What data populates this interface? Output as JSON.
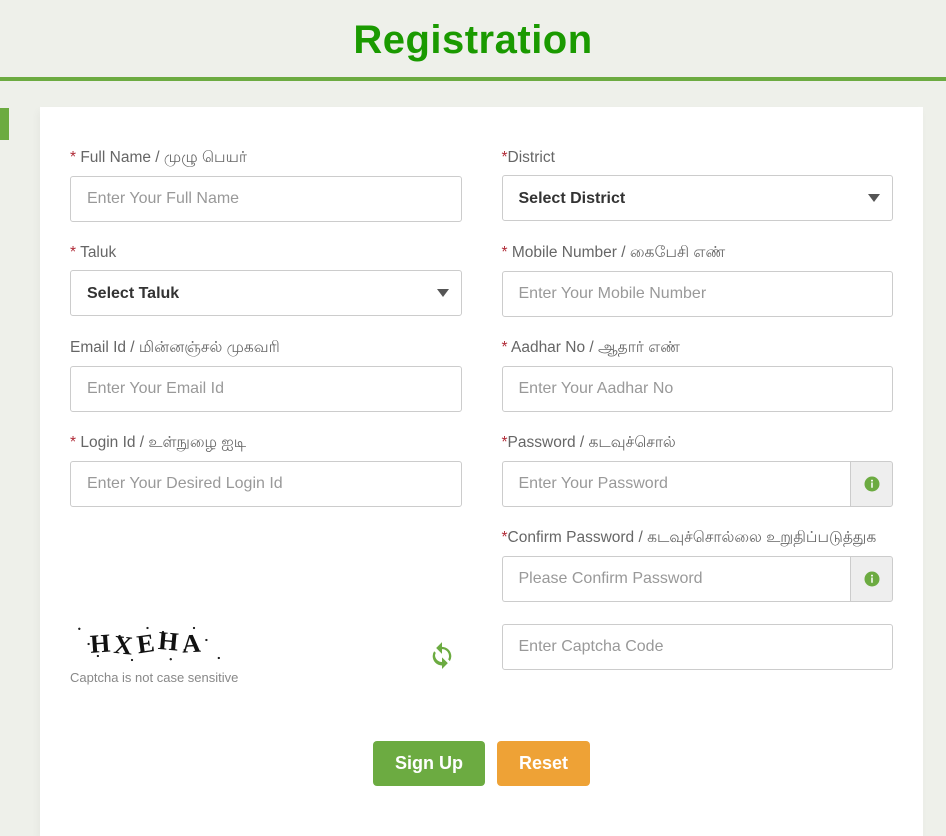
{
  "header": {
    "title": "Registration"
  },
  "colors": {
    "accent": "#6cab41",
    "title": "#1a9a00",
    "required": "#b02a37",
    "bg": "#eef0ea",
    "btn_primary": "#6cab41",
    "btn_warning": "#eea236"
  },
  "fields": {
    "fullname": {
      "label": "Full Name / முழு பெயர்",
      "placeholder": "Enter Your Full Name",
      "required": true
    },
    "district": {
      "label": "District",
      "placeholder": "Select District",
      "required": true
    },
    "taluk": {
      "label": "Taluk",
      "placeholder": "Select Taluk",
      "required": true
    },
    "mobile": {
      "label": "Mobile Number / கைபேசி எண்",
      "placeholder": "Enter Your Mobile Number",
      "required": true
    },
    "email": {
      "label": "Email Id / மின்னஞ்சல் முகவரி",
      "placeholder": "Enter Your Email Id",
      "required": false
    },
    "aadhar": {
      "label": "Aadhar No / ஆதார் எண்",
      "placeholder": "Enter Your Aadhar No",
      "required": true
    },
    "login": {
      "label": "Login Id / உள்நுழை ஐடி",
      "placeholder": "Enter Your Desired Login Id",
      "required": true
    },
    "password": {
      "label": "Password / கடவுச்சொல்",
      "placeholder": "Enter Your Password",
      "required": true
    },
    "confirm": {
      "label": "Confirm Password / கடவுச்சொல்லை உறுதிப்படுத்துக",
      "placeholder": "Please Confirm Password",
      "required": true
    },
    "captcha": {
      "placeholder": "Enter Captcha Code"
    }
  },
  "captcha": {
    "text": "HXEHA",
    "note": "Captcha is not case sensitive"
  },
  "buttons": {
    "signup": "Sign Up",
    "reset": "Reset"
  }
}
